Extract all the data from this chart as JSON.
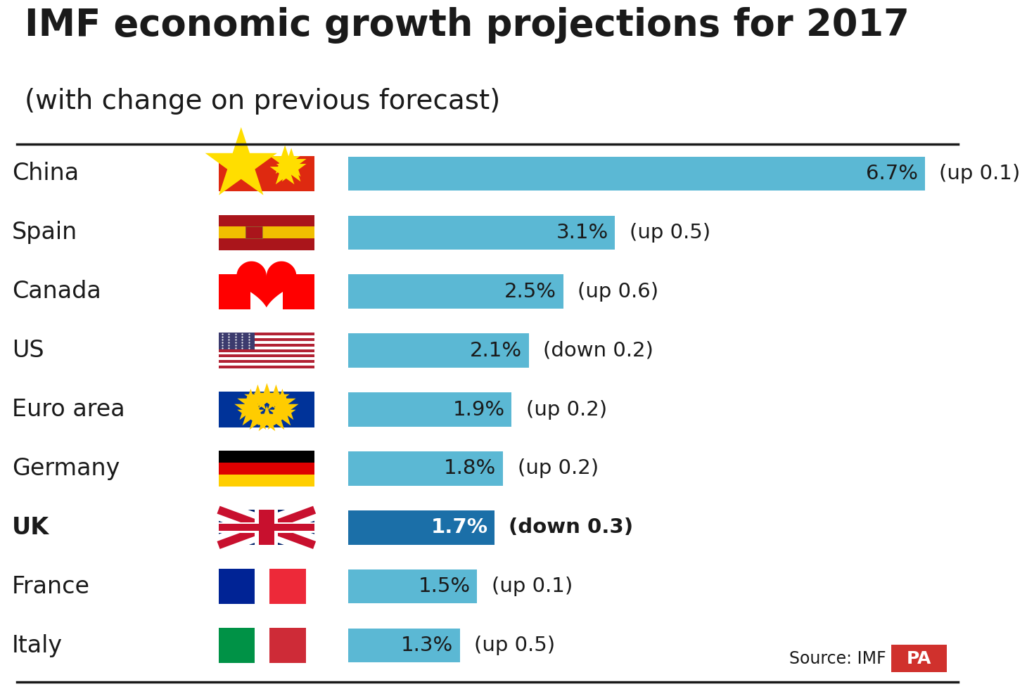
{
  "title_line1": "IMF economic growth projections for 2017",
  "title_line2": "(with change on previous forecast)",
  "countries": [
    "China",
    "Spain",
    "Canada",
    "US",
    "Euro area",
    "Germany",
    "UK",
    "France",
    "Italy"
  ],
  "values": [
    6.7,
    3.1,
    2.5,
    2.1,
    1.9,
    1.8,
    1.7,
    1.5,
    1.3
  ],
  "changes": [
    "(up 0.1)",
    "(up 0.5)",
    "(up 0.6)",
    "(down 0.2)",
    "(up 0.2)",
    "(up 0.2)",
    "(down 0.3)",
    "(up 0.1)",
    "(up 0.5)"
  ],
  "bar_color_normal": "#5BB8D4",
  "bar_color_uk": "#1B6FA8",
  "uk_index": 6,
  "background_color": "#FFFFFF",
  "title_color": "#1a1a1a",
  "source_text": "Source: IMF",
  "pa_bg": "#D0312D",
  "pa_text": "PA",
  "separator_color": "#1a1a1a"
}
